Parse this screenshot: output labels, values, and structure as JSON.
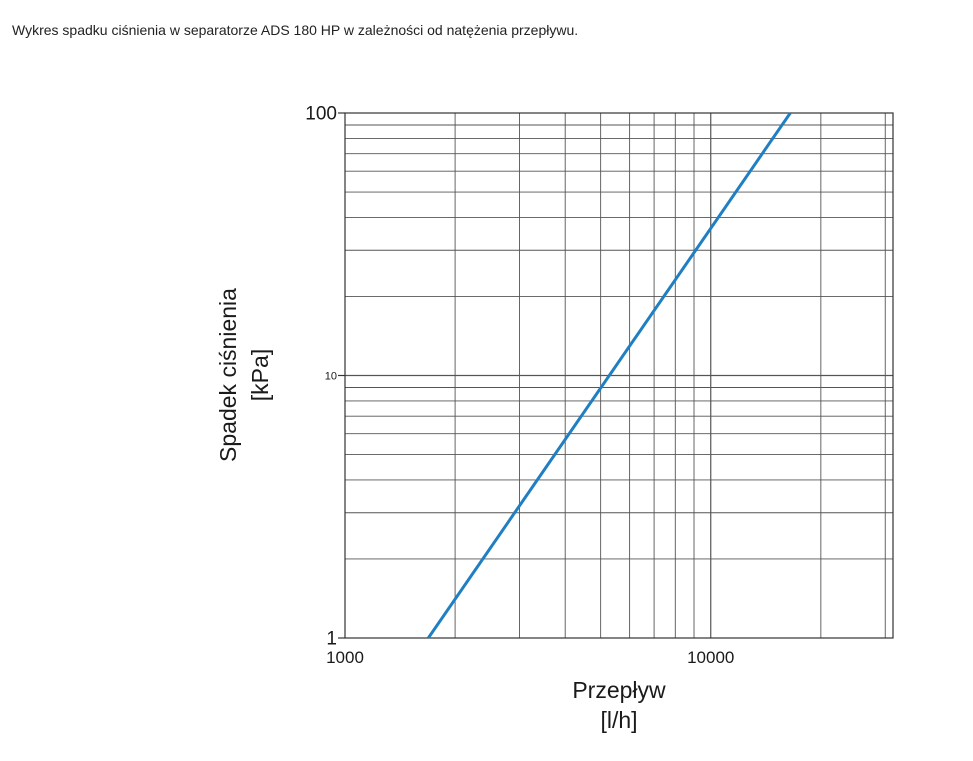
{
  "caption": "Wykres spadku ciśnienia w separatorze ADS 180 HP w zależności od natężenia przepływu.",
  "chart_data": {
    "type": "line",
    "title": "",
    "xlabel_line1": "Przepływ",
    "xlabel_line2": "[l/h]",
    "ylabel_line1": "Spadek ciśnienia",
    "ylabel_line2": "[kPa]",
    "xscale": "log",
    "yscale": "log",
    "xlim": [
      1000,
      31500
    ],
    "ylim": [
      1,
      100
    ],
    "x_tick_labels": [
      "1000",
      "10000"
    ],
    "y_tick_labels": [
      "1",
      "10",
      "100"
    ],
    "grid": true,
    "series": [
      {
        "x": [
          1690,
          16500
        ],
        "y": [
          1,
          100
        ]
      }
    ],
    "colors": {
      "series": "#1f7fc2",
      "grid": "#555555",
      "axis": "#333333"
    }
  }
}
